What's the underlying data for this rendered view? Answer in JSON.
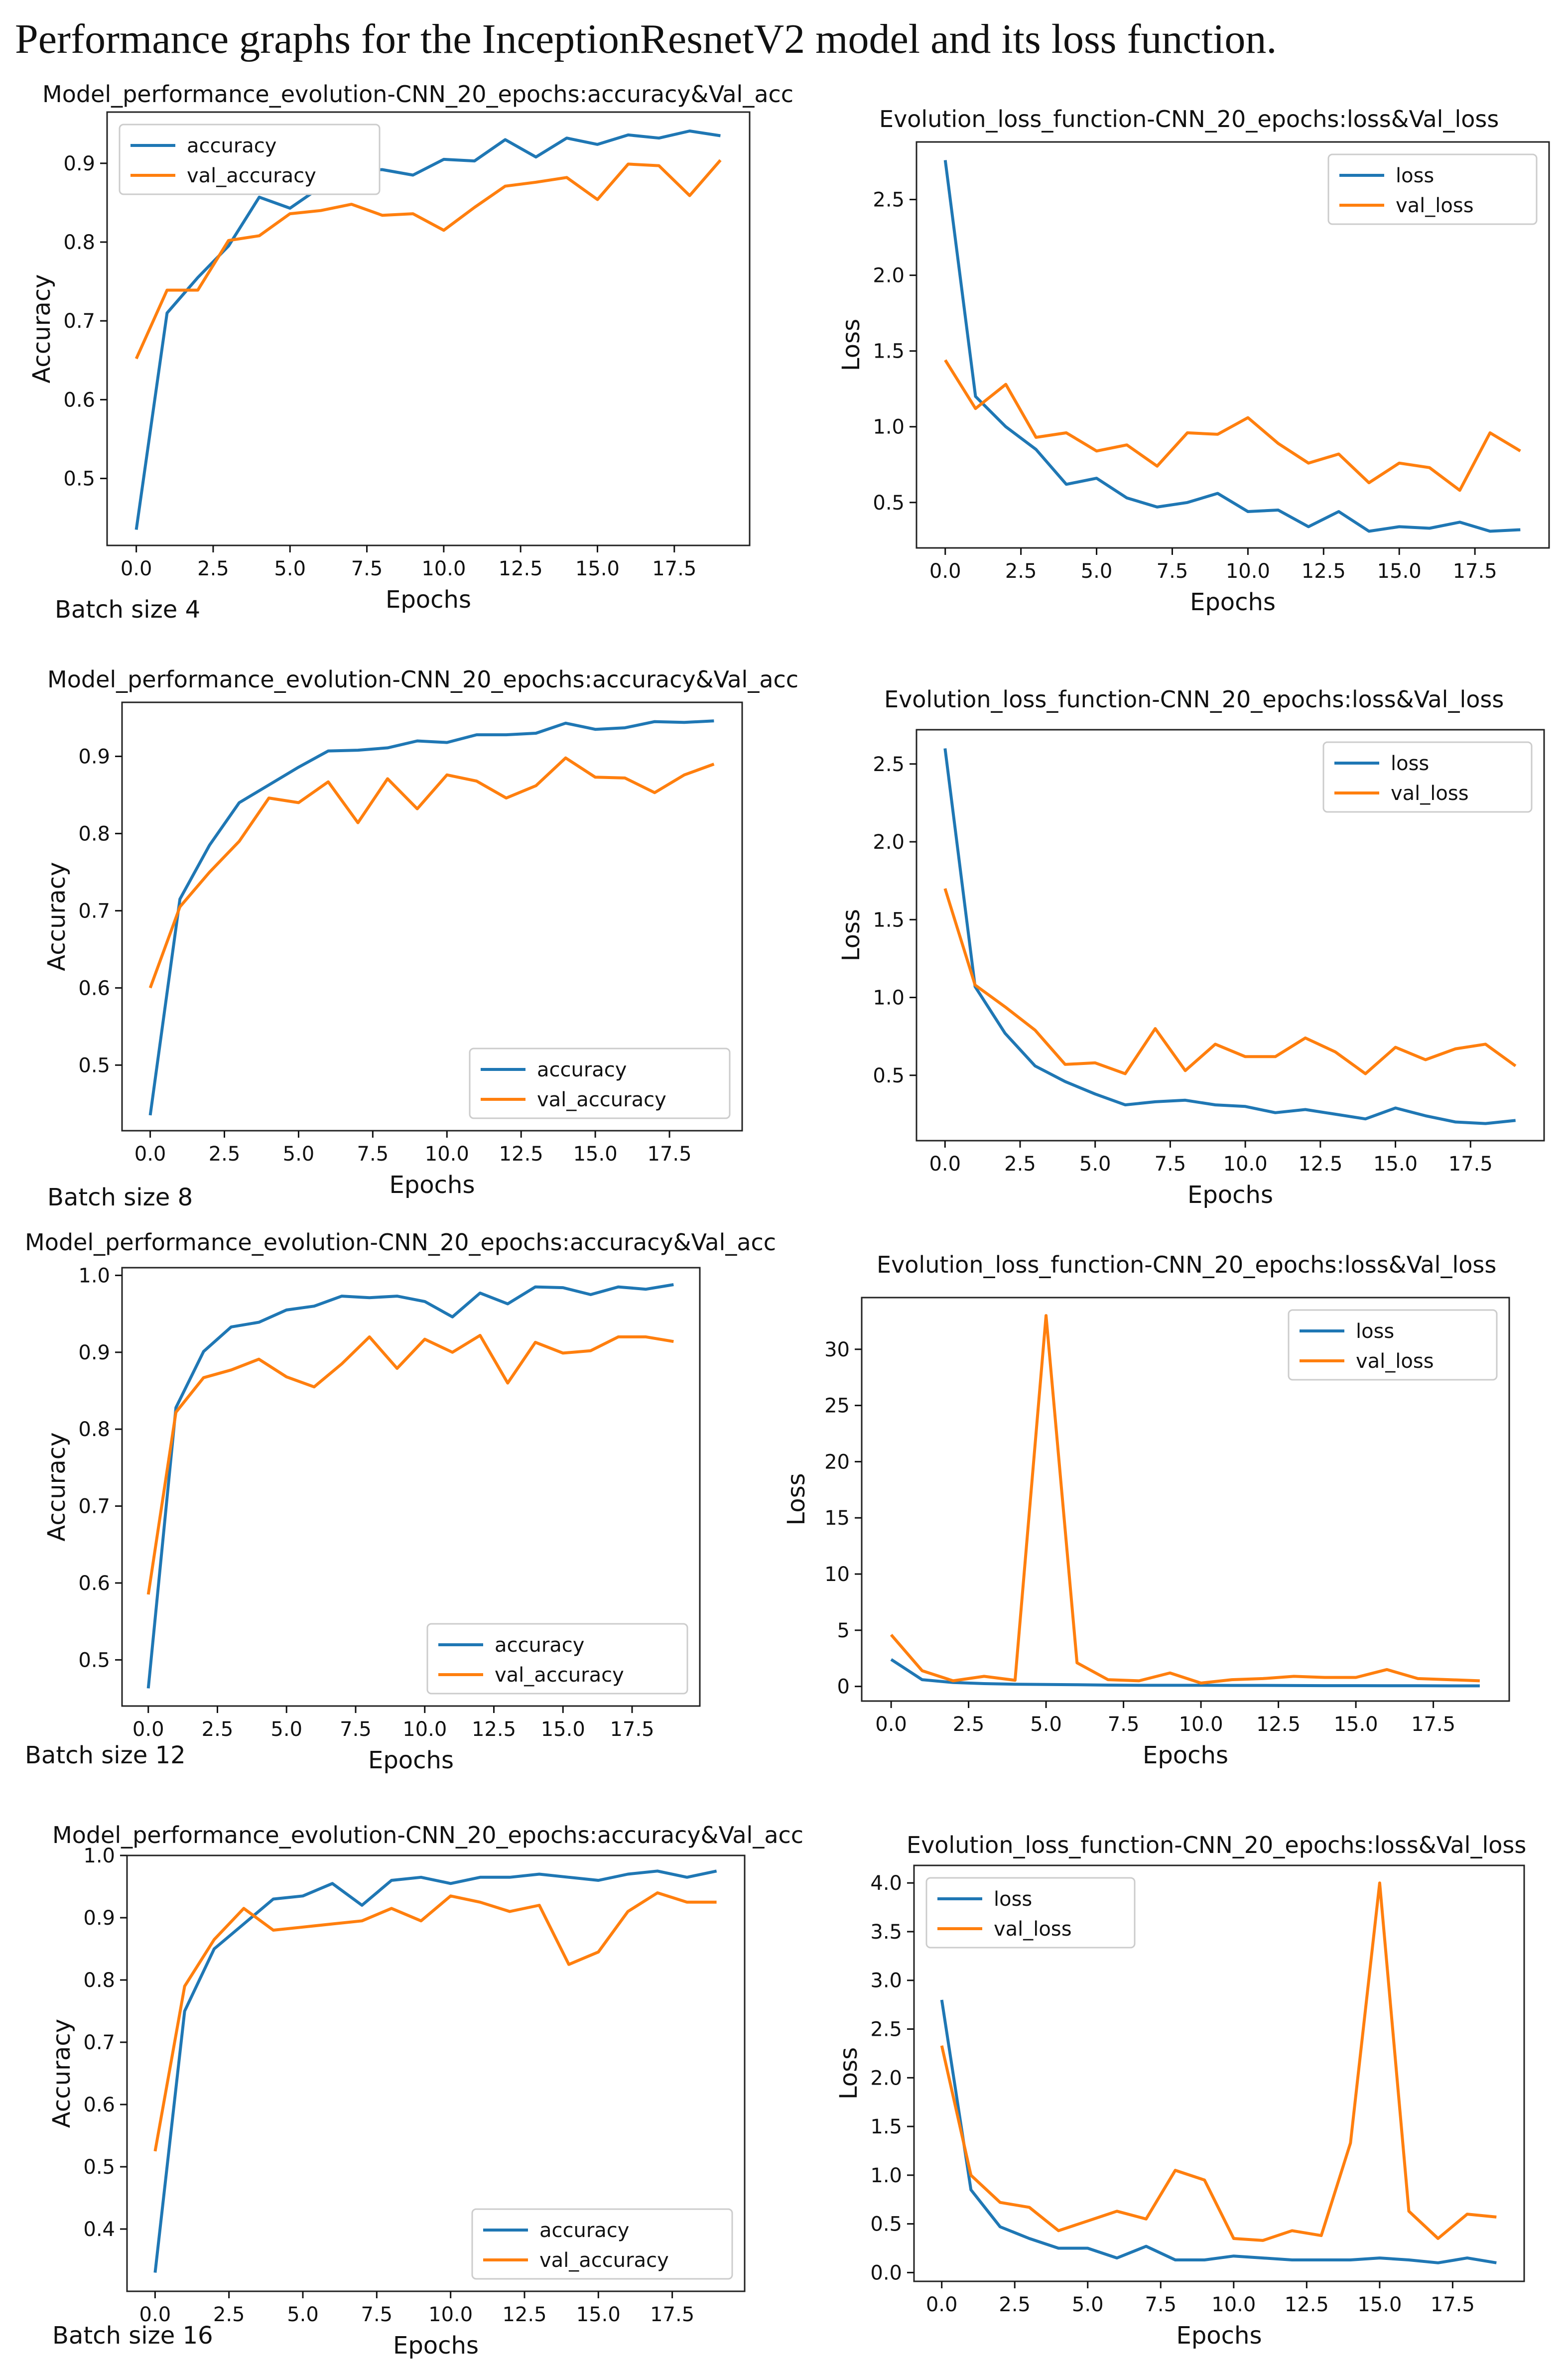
{
  "figure": {
    "heading": "Performance graphs for the InceptionResnetV2 model and its loss function.",
    "batch_labels": [
      "Batch size 4",
      "Batch size 8",
      "Batch size 12",
      "Batch size 16"
    ]
  },
  "colors": {
    "train": "#1f77b4",
    "val": "#ff7f0e",
    "axis": "#111111",
    "frame": "#222222"
  },
  "chart_data": [
    {
      "id": "acc-bs4",
      "type": "line",
      "title": "Model_performance_evolution-CNN_20_epochs:accuracy&Val_acc",
      "xlabel": "Epochs",
      "ylabel": "Accuracy",
      "xlim": [
        -0.95,
        19.95
      ],
      "ylim": [
        0.415,
        0.965
      ],
      "xticks": [
        "0.0",
        "2.5",
        "5.0",
        "7.5",
        "10.0",
        "12.5",
        "15.0",
        "17.5"
      ],
      "xtick_values": [
        0,
        2.5,
        5,
        7.5,
        10,
        12.5,
        15,
        17.5
      ],
      "yticks": [
        "0.5",
        "0.6",
        "0.7",
        "0.8",
        "0.9"
      ],
      "ytick_values": [
        0.5,
        0.6,
        0.7,
        0.8,
        0.9
      ],
      "legend": "upper left",
      "grid": false,
      "x": [
        0,
        1,
        2,
        3,
        4,
        5,
        6,
        7,
        8,
        9,
        10,
        11,
        12,
        13,
        14,
        15,
        16,
        17,
        18,
        19
      ],
      "series": [
        {
          "name": "accuracy",
          "values": [
            0.435,
            0.71,
            0.755,
            0.795,
            0.857,
            0.843,
            0.87,
            0.89,
            0.892,
            0.885,
            0.905,
            0.903,
            0.93,
            0.908,
            0.932,
            0.924,
            0.936,
            0.932,
            0.941,
            0.935
          ]
        },
        {
          "name": "val_accuracy",
          "values": [
            0.652,
            0.739,
            0.739,
            0.802,
            0.808,
            0.836,
            0.84,
            0.848,
            0.834,
            0.836,
            0.815,
            0.844,
            0.871,
            0.876,
            0.882,
            0.854,
            0.899,
            0.897,
            0.859,
            0.904
          ]
        }
      ]
    },
    {
      "id": "loss-bs4",
      "type": "line",
      "title": "Evolution_loss_function-CNN_20_epochs:loss&Val_loss",
      "xlabel": "Epochs",
      "ylabel": "Loss",
      "xlim": [
        -0.95,
        19.95
      ],
      "ylim": [
        0.2,
        2.88
      ],
      "xticks": [
        "0.0",
        "2.5",
        "5.0",
        "7.5",
        "10.0",
        "12.5",
        "15.0",
        "17.5"
      ],
      "xtick_values": [
        0,
        2.5,
        5,
        7.5,
        10,
        12.5,
        15,
        17.5
      ],
      "yticks": [
        "0.5",
        "1.0",
        "1.5",
        "2.0",
        "2.5"
      ],
      "ytick_values": [
        0.5,
        1,
        1.5,
        2,
        2.5
      ],
      "legend": "upper right",
      "grid": false,
      "x": [
        0,
        1,
        2,
        3,
        4,
        5,
        6,
        7,
        8,
        9,
        10,
        11,
        12,
        13,
        14,
        15,
        16,
        17,
        18,
        19
      ],
      "series": [
        {
          "name": "loss",
          "values": [
            2.76,
            1.2,
            1.0,
            0.85,
            0.62,
            0.66,
            0.53,
            0.47,
            0.5,
            0.56,
            0.44,
            0.45,
            0.34,
            0.44,
            0.31,
            0.34,
            0.33,
            0.37,
            0.31,
            0.32
          ]
        },
        {
          "name": "val_loss",
          "values": [
            1.44,
            1.12,
            1.28,
            0.93,
            0.96,
            0.84,
            0.88,
            0.74,
            0.96,
            0.95,
            1.06,
            0.89,
            0.76,
            0.82,
            0.63,
            0.76,
            0.73,
            0.58,
            0.96,
            0.84
          ]
        }
      ]
    },
    {
      "id": "acc-bs8",
      "type": "line",
      "title": "Model_performance_evolution-CNN_20_epochs:accuracy&Val_acc",
      "xlabel": "Epochs",
      "ylabel": "Accuracy",
      "xlim": [
        -0.95,
        19.95
      ],
      "ylim": [
        0.415,
        0.97
      ],
      "xticks": [
        "0.0",
        "2.5",
        "5.0",
        "7.5",
        "10.0",
        "12.5",
        "15.0",
        "17.5"
      ],
      "xtick_values": [
        0,
        2.5,
        5,
        7.5,
        10,
        12.5,
        15,
        17.5
      ],
      "yticks": [
        "0.5",
        "0.6",
        "0.7",
        "0.8",
        "0.9"
      ],
      "ytick_values": [
        0.5,
        0.6,
        0.7,
        0.8,
        0.9
      ],
      "legend": "lower right",
      "grid": false,
      "x": [
        0,
        1,
        2,
        3,
        4,
        5,
        6,
        7,
        8,
        9,
        10,
        11,
        12,
        13,
        14,
        15,
        16,
        17,
        18,
        19
      ],
      "series": [
        {
          "name": "accuracy",
          "values": [
            0.435,
            0.715,
            0.785,
            0.84,
            0.863,
            0.886,
            0.907,
            0.908,
            0.911,
            0.92,
            0.918,
            0.928,
            0.928,
            0.93,
            0.943,
            0.935,
            0.937,
            0.945,
            0.944,
            0.946
          ]
        },
        {
          "name": "val_accuracy",
          "values": [
            0.6,
            0.705,
            0.75,
            0.79,
            0.846,
            0.84,
            0.867,
            0.814,
            0.871,
            0.832,
            0.876,
            0.868,
            0.846,
            0.862,
            0.898,
            0.873,
            0.872,
            0.853,
            0.876,
            0.89
          ]
        }
      ]
    },
    {
      "id": "loss-bs8",
      "type": "line",
      "title": "Evolution_loss_function-CNN_20_epochs:loss&Val_loss",
      "xlabel": "Epochs",
      "ylabel": "Loss",
      "xlim": [
        -0.95,
        19.95
      ],
      "ylim": [
        0.08,
        2.72
      ],
      "xticks": [
        "0.0",
        "2.5",
        "5.0",
        "7.5",
        "10.0",
        "12.5",
        "15.0",
        "17.5"
      ],
      "xtick_values": [
        0,
        2.5,
        5,
        7.5,
        10,
        12.5,
        15,
        17.5
      ],
      "yticks": [
        "0.5",
        "1.0",
        "1.5",
        "2.0",
        "2.5"
      ],
      "ytick_values": [
        0.5,
        1,
        1.5,
        2,
        2.5
      ],
      "legend": "upper right",
      "grid": false,
      "x": [
        0,
        1,
        2,
        3,
        4,
        5,
        6,
        7,
        8,
        9,
        10,
        11,
        12,
        13,
        14,
        15,
        16,
        17,
        18,
        19
      ],
      "series": [
        {
          "name": "loss",
          "values": [
            2.6,
            1.07,
            0.77,
            0.56,
            0.46,
            0.38,
            0.31,
            0.33,
            0.34,
            0.31,
            0.3,
            0.26,
            0.28,
            0.25,
            0.22,
            0.29,
            0.24,
            0.2,
            0.19,
            0.21
          ]
        },
        {
          "name": "val_loss",
          "values": [
            1.7,
            1.08,
            0.94,
            0.79,
            0.57,
            0.58,
            0.51,
            0.8,
            0.53,
            0.7,
            0.62,
            0.62,
            0.74,
            0.65,
            0.51,
            0.68,
            0.6,
            0.67,
            0.7,
            0.56
          ]
        }
      ]
    },
    {
      "id": "acc-bs12",
      "type": "line",
      "title": "Model_performance_evolution-CNN_20_epochs:accuracy&Val_acc",
      "xlabel": "Epochs",
      "ylabel": "Accuracy",
      "xlim": [
        -0.95,
        19.95
      ],
      "ylim": [
        0.44,
        1.01
      ],
      "xticks": [
        "0.0",
        "2.5",
        "5.0",
        "7.5",
        "10.0",
        "12.5",
        "15.0",
        "17.5"
      ],
      "xtick_values": [
        0,
        2.5,
        5,
        7.5,
        10,
        12.5,
        15,
        17.5
      ],
      "yticks": [
        "0.5",
        "0.6",
        "0.7",
        "0.8",
        "0.9",
        "1.0"
      ],
      "ytick_values": [
        0.5,
        0.6,
        0.7,
        0.8,
        0.9,
        1.0
      ],
      "legend": "lower right",
      "grid": false,
      "x": [
        0,
        1,
        2,
        3,
        4,
        5,
        6,
        7,
        8,
        9,
        10,
        11,
        12,
        13,
        14,
        15,
        16,
        17,
        18,
        19
      ],
      "series": [
        {
          "name": "accuracy",
          "values": [
            0.463,
            0.828,
            0.901,
            0.933,
            0.939,
            0.955,
            0.96,
            0.973,
            0.971,
            0.973,
            0.966,
            0.946,
            0.977,
            0.963,
            0.985,
            0.984,
            0.975,
            0.985,
            0.982,
            0.988
          ]
        },
        {
          "name": "val_accuracy",
          "values": [
            0.585,
            0.822,
            0.867,
            0.877,
            0.891,
            0.868,
            0.855,
            0.885,
            0.92,
            0.879,
            0.917,
            0.9,
            0.922,
            0.86,
            0.913,
            0.899,
            0.902,
            0.92,
            0.92,
            0.914
          ]
        }
      ]
    },
    {
      "id": "loss-bs12",
      "type": "line",
      "title": "Evolution_loss_function-CNN_20_epochs:loss&Val_loss",
      "xlabel": "Epochs",
      "ylabel": "Loss",
      "xlim": [
        -0.95,
        19.95
      ],
      "ylim": [
        -1.3,
        34.6
      ],
      "xticks": [
        "0.0",
        "2.5",
        "5.0",
        "7.5",
        "10.0",
        "12.5",
        "15.0",
        "17.5"
      ],
      "xtick_values": [
        0,
        2.5,
        5,
        7.5,
        10,
        12.5,
        15,
        17.5
      ],
      "yticks": [
        "0",
        "5",
        "10",
        "15",
        "20",
        "25",
        "30"
      ],
      "ytick_values": [
        0,
        5,
        10,
        15,
        20,
        25,
        30
      ],
      "legend": "upper right",
      "grid": false,
      "x": [
        0,
        1,
        2,
        3,
        4,
        5,
        6,
        7,
        8,
        9,
        10,
        11,
        12,
        13,
        14,
        15,
        16,
        17,
        18,
        19
      ],
      "series": [
        {
          "name": "loss",
          "values": [
            2.4,
            0.6,
            0.35,
            0.25,
            0.2,
            0.17,
            0.15,
            0.12,
            0.1,
            0.1,
            0.1,
            0.09,
            0.09,
            0.08,
            0.07,
            0.07,
            0.06,
            0.06,
            0.05,
            0.05
          ]
        },
        {
          "name": "val_loss",
          "values": [
            4.6,
            1.4,
            0.5,
            0.9,
            0.55,
            33.0,
            2.1,
            0.6,
            0.5,
            1.2,
            0.3,
            0.6,
            0.7,
            0.9,
            0.8,
            0.8,
            1.5,
            0.7,
            0.6,
            0.5
          ]
        }
      ]
    },
    {
      "id": "acc-bs16",
      "type": "line",
      "title": "Model_performance_evolution-CNN_20_epochs:accuracy&Val_acc",
      "xlabel": "Epochs",
      "ylabel": "Accuracy",
      "xlim": [
        -0.95,
        19.95
      ],
      "ylim": [
        0.3,
        1.0
      ],
      "xticks": [
        "0.0",
        "2.5",
        "5.0",
        "7.5",
        "10.0",
        "12.5",
        "15.0",
        "17.5"
      ],
      "xtick_values": [
        0,
        2.5,
        5,
        7.5,
        10,
        12.5,
        15,
        17.5
      ],
      "yticks": [
        "0.4",
        "0.5",
        "0.6",
        "0.7",
        "0.8",
        "0.9",
        "1.0"
      ],
      "ytick_values": [
        0.4,
        0.5,
        0.6,
        0.7,
        0.8,
        0.9,
        1.0
      ],
      "legend": "lower right",
      "grid": false,
      "x": [
        0,
        1,
        2,
        3,
        4,
        5,
        6,
        7,
        8,
        9,
        10,
        11,
        12,
        13,
        14,
        15,
        16,
        17,
        18,
        19
      ],
      "series": [
        {
          "name": "accuracy",
          "values": [
            0.33,
            0.75,
            0.85,
            0.89,
            0.93,
            0.935,
            0.955,
            0.92,
            0.96,
            0.965,
            0.955,
            0.965,
            0.965,
            0.97,
            0.965,
            0.96,
            0.97,
            0.975,
            0.965,
            0.975
          ]
        },
        {
          "name": "val_accuracy",
          "values": [
            0.525,
            0.79,
            0.865,
            0.915,
            0.88,
            0.885,
            0.89,
            0.895,
            0.915,
            0.895,
            0.935,
            0.925,
            0.91,
            0.92,
            0.825,
            0.845,
            0.91,
            0.94,
            0.925,
            0.925
          ]
        }
      ]
    },
    {
      "id": "loss-bs16",
      "type": "line",
      "title": "Evolution_loss_function-CNN_20_epochs:loss&Val_loss",
      "xlabel": "Epochs",
      "ylabel": "Loss",
      "xlim": [
        -0.95,
        19.95
      ],
      "ylim": [
        -0.09,
        4.18
      ],
      "xticks": [
        "0.0",
        "2.5",
        "5.0",
        "7.5",
        "10.0",
        "12.5",
        "15.0",
        "17.5"
      ],
      "xtick_values": [
        0,
        2.5,
        5,
        7.5,
        10,
        12.5,
        15,
        17.5
      ],
      "yticks": [
        "0.0",
        "0.5",
        "1.0",
        "1.5",
        "2.0",
        "2.5",
        "3.0",
        "3.5",
        "4.0"
      ],
      "ytick_values": [
        0,
        0.5,
        1,
        1.5,
        2,
        2.5,
        3,
        3.5,
        4
      ],
      "legend": "upper left",
      "grid": false,
      "x": [
        0,
        1,
        2,
        3,
        4,
        5,
        6,
        7,
        8,
        9,
        10,
        11,
        12,
        13,
        14,
        15,
        16,
        17,
        18,
        19
      ],
      "series": [
        {
          "name": "loss",
          "values": [
            2.8,
            0.85,
            0.47,
            0.35,
            0.25,
            0.25,
            0.15,
            0.27,
            0.13,
            0.13,
            0.17,
            0.15,
            0.13,
            0.13,
            0.13,
            0.15,
            0.13,
            0.1,
            0.15,
            0.1
          ]
        },
        {
          "name": "val_loss",
          "values": [
            2.33,
            1.0,
            0.72,
            0.67,
            0.43,
            0.53,
            0.63,
            0.55,
            1.05,
            0.95,
            0.35,
            0.33,
            0.43,
            0.38,
            1.33,
            4.0,
            0.63,
            0.35,
            0.6,
            0.57
          ]
        }
      ]
    }
  ]
}
